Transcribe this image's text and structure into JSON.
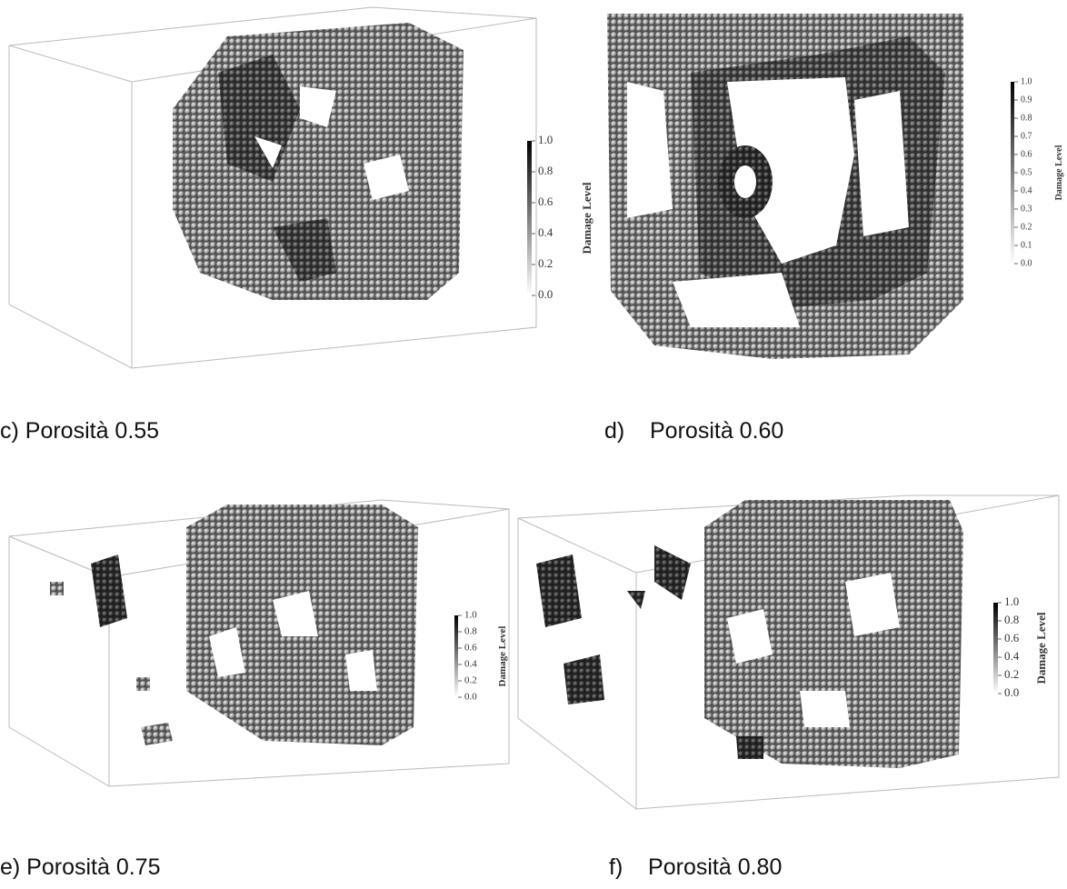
{
  "panels": [
    {
      "caption": "c) Porosità 0.55",
      "colorbar": {
        "label": "Damage Level",
        "ticks": [
          "1.0",
          "0.8",
          "0.6",
          "0.4",
          "0.2",
          "0.0"
        ]
      }
    },
    {
      "caption": "d)    Porosità 0.60",
      "colorbar": {
        "label": "Damage Level",
        "ticks": [
          "1.0",
          "0.9",
          "0.8",
          "0.7",
          "0.6",
          "0.5",
          "0.4",
          "0.3",
          "0.2",
          "0.1",
          "0.0"
        ]
      }
    },
    {
      "caption": "e) Porosità 0.75",
      "colorbar": {
        "label": "Damage Level",
        "ticks": [
          "1.0",
          "0.8",
          "0.6",
          "0.4",
          "0.2",
          "0.0"
        ]
      }
    },
    {
      "caption": "f)    Porosità 0.80",
      "colorbar": {
        "label": "Damage Level",
        "ticks": [
          "1.0",
          "0.8",
          "0.6",
          "0.4",
          "0.2",
          "0.0"
        ]
      }
    }
  ]
}
